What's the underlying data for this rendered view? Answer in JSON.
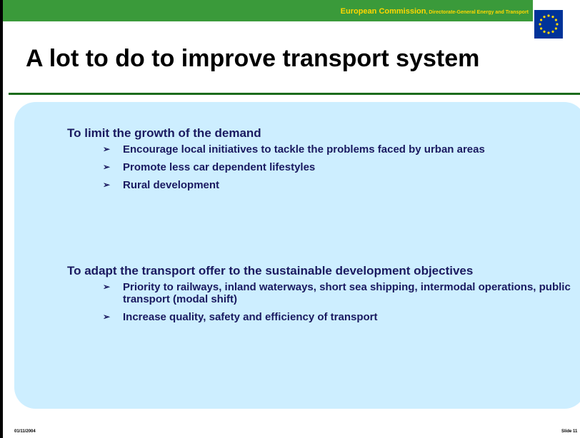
{
  "header": {
    "org": "European Commission",
    "dept": ", Directorate-General Energy and Transport"
  },
  "title": "A lot to do to improve transport system",
  "sections": [
    {
      "heading": "To limit the growth of the demand",
      "bullets": [
        "Encourage local initiatives to tackle the problems faced by urban areas",
        "Promote less car dependent lifestyles",
        "Rural development"
      ]
    },
    {
      "heading": "To adapt the transport offer to the sustainable development objectives",
      "bullets": [
        "Priority to railways, inland waterways, short sea shipping, intermodal operations, public transport  (modal shift)",
        "Increase quality, safety and efficiency of transport"
      ]
    }
  ],
  "footer": {
    "date": "01/11/2004",
    "slide": "Slide 11"
  }
}
